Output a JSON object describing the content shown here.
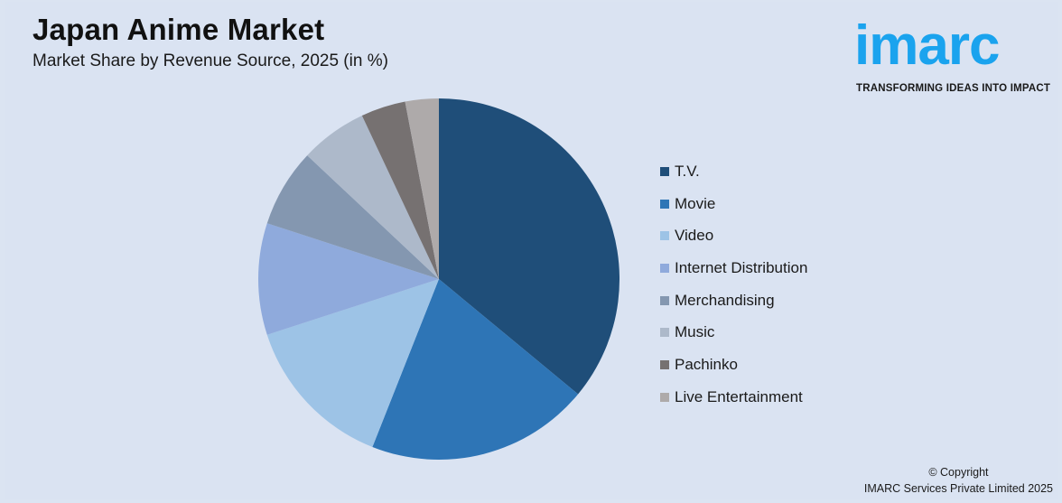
{
  "header": {
    "title": "Japan Anime Market",
    "subtitle": "Market Share by Revenue Source, 2025 (in %)"
  },
  "logo": {
    "word": "imarc",
    "tagline": "TRANSFORMING IDEAS INTO IMPACT",
    "color": "#1aa3ee"
  },
  "legend": {
    "items": [
      {
        "label": "T.V.",
        "color": "#1f4e79"
      },
      {
        "label": "Movie",
        "color": "#2e75b6"
      },
      {
        "label": "Video",
        "color": "#9dc3e6"
      },
      {
        "label": "Internet Distribution",
        "color": "#8faadc"
      },
      {
        "label": "Merchandising",
        "color": "#8497b0"
      },
      {
        "label": "Music",
        "color": "#adb9ca"
      },
      {
        "label": "Pachinko",
        "color": "#767171"
      },
      {
        "label": "Live Entertainment",
        "color": "#aeaaaa"
      }
    ]
  },
  "footer": {
    "copyright_line1": "© Copyright",
    "copyright_line2": "IMARC Services Private Limited 2025"
  },
  "chart_data": {
    "type": "pie",
    "title": "Japan Anime Market",
    "subtitle": "Market Share by Revenue Source, 2025 (in %)",
    "categories": [
      "T.V.",
      "Movie",
      "Video",
      "Internet Distribution",
      "Merchandising",
      "Music",
      "Pachinko",
      "Live Entertainment"
    ],
    "values": [
      36,
      20,
      14,
      10,
      7,
      6,
      4,
      3
    ],
    "colors": [
      "#1f4e79",
      "#2e75b6",
      "#9dc3e6",
      "#8faadc",
      "#8497b0",
      "#adb9ca",
      "#767171",
      "#aeaaaa"
    ],
    "start_angle": "12 o'clock, clockwise",
    "legend_position": "right",
    "data_labels": false
  }
}
